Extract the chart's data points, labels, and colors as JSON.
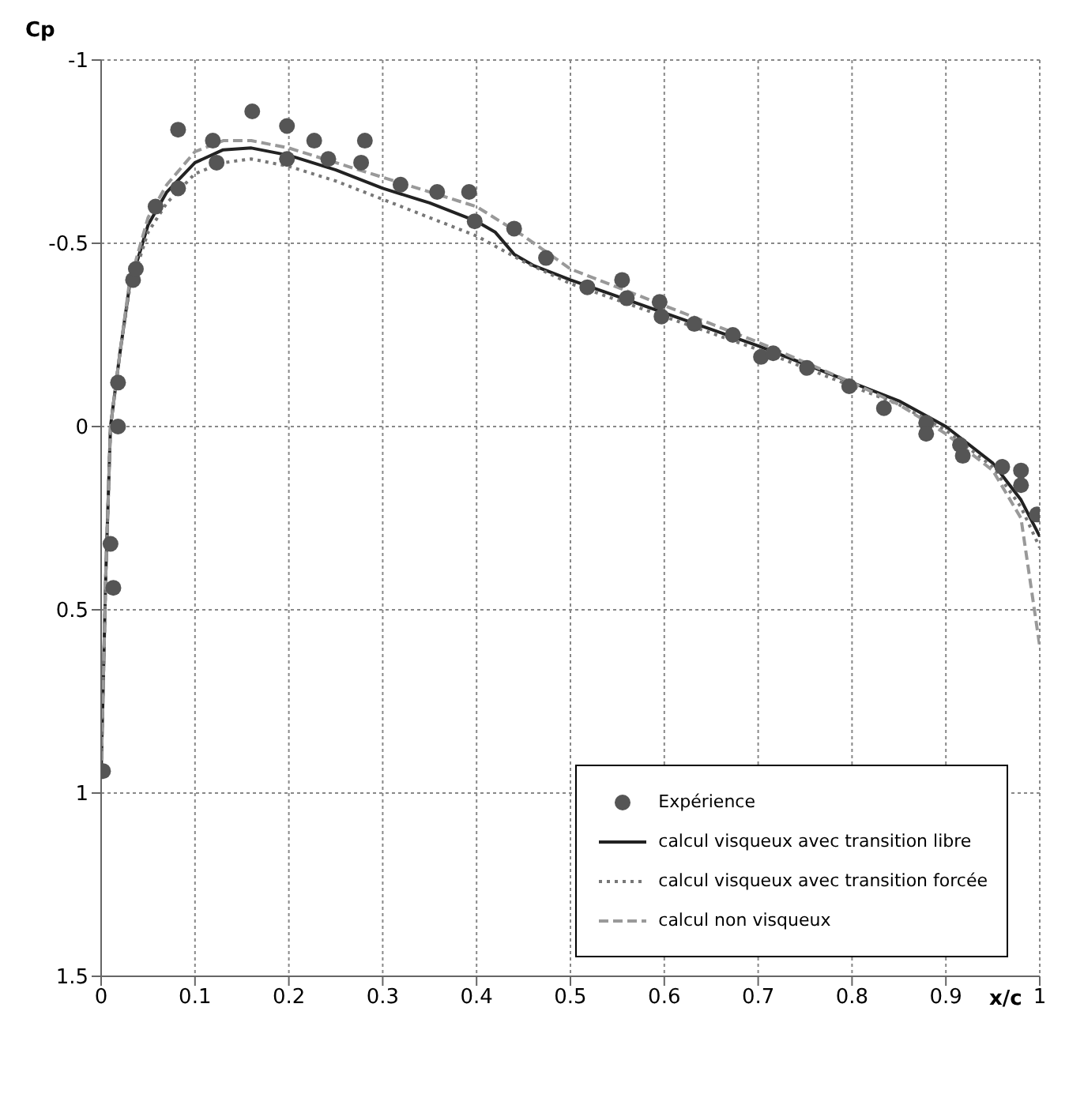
{
  "chart_data": {
    "type": "line",
    "xlabel": "x/c",
    "ylabel": "Cp",
    "xlim": [
      0,
      1
    ],
    "xticks": [
      0,
      0.1,
      0.2,
      0.3,
      0.4,
      0.5,
      0.6,
      0.7,
      0.8,
      0.9,
      1
    ],
    "ylim": [
      1.5,
      -1
    ],
    "yticks": [
      -1,
      -0.5,
      0,
      0.5,
      1,
      1.5
    ],
    "grid": true,
    "legend": "bottom right",
    "series": [
      {
        "name": "Expérience",
        "type": "scatter",
        "marker": "circle",
        "color": "#555555",
        "x": [
          0.002,
          0.013,
          0.01,
          0.018,
          0.018,
          0.034,
          0.037,
          0.058,
          0.082,
          0.082,
          0.119,
          0.123,
          0.161,
          0.198,
          0.198,
          0.227,
          0.242,
          0.281,
          0.277,
          0.319,
          0.358,
          0.392,
          0.398,
          0.44,
          0.474,
          0.518,
          0.555,
          0.56,
          0.595,
          0.597,
          0.632,
          0.673,
          0.703,
          0.716,
          0.752,
          0.797,
          0.834,
          0.879,
          0.879,
          0.915,
          0.918,
          0.96,
          0.98,
          0.98,
          0.997
        ],
        "values": [
          0.94,
          0.44,
          0.32,
          0.0,
          -0.12,
          -0.4,
          -0.43,
          -0.6,
          -0.65,
          -0.81,
          -0.78,
          -0.72,
          -0.86,
          -0.82,
          -0.73,
          -0.78,
          -0.73,
          -0.78,
          -0.72,
          -0.66,
          -0.64,
          -0.64,
          -0.56,
          -0.54,
          -0.46,
          -0.38,
          -0.4,
          -0.35,
          -0.34,
          -0.3,
          -0.28,
          -0.25,
          -0.19,
          -0.2,
          -0.16,
          -0.11,
          -0.05,
          -0.01,
          0.02,
          0.05,
          0.08,
          0.11,
          0.12,
          0.16,
          0.24
        ]
      },
      {
        "name": "calcul visqueux avec transition libre",
        "marker": "none",
        "line_style": "solid",
        "color": "#222222",
        "x": [
          0,
          0.005,
          0.01,
          0.02,
          0.03,
          0.05,
          0.07,
          0.1,
          0.13,
          0.16,
          0.2,
          0.25,
          0.3,
          0.35,
          0.4,
          0.42,
          0.44,
          0.46,
          0.5,
          0.6,
          0.7,
          0.8,
          0.85,
          0.9,
          0.95,
          0.98,
          1
        ],
        "values": [
          0.95,
          0.4,
          0.0,
          -0.2,
          -0.38,
          -0.55,
          -0.64,
          -0.72,
          -0.755,
          -0.76,
          -0.74,
          -0.7,
          -0.65,
          -0.61,
          -0.56,
          -0.53,
          -0.47,
          -0.44,
          -0.4,
          -0.31,
          -0.22,
          -0.12,
          -0.07,
          0.0,
          0.1,
          0.2,
          0.3
        ]
      },
      {
        "name": "calcul visqueux avec transition forcée",
        "marker": "none",
        "line_style": "dotted",
        "color": "#777777",
        "x": [
          0,
          0.005,
          0.01,
          0.02,
          0.03,
          0.05,
          0.07,
          0.1,
          0.13,
          0.16,
          0.2,
          0.25,
          0.3,
          0.35,
          0.4,
          0.45,
          0.5,
          0.6,
          0.7,
          0.8,
          0.85,
          0.9,
          0.95,
          0.98,
          1
        ],
        "values": [
          0.95,
          0.4,
          0.0,
          -0.2,
          -0.37,
          -0.53,
          -0.61,
          -0.69,
          -0.72,
          -0.73,
          -0.71,
          -0.67,
          -0.62,
          -0.57,
          -0.52,
          -0.45,
          -0.39,
          -0.3,
          -0.21,
          -0.11,
          -0.06,
          0.01,
          0.11,
          0.22,
          0.33
        ]
      },
      {
        "name": "calcul non visqueux",
        "marker": "none",
        "line_style": "dashed",
        "color": "#999999",
        "x": [
          0,
          0.005,
          0.01,
          0.02,
          0.03,
          0.05,
          0.07,
          0.1,
          0.13,
          0.16,
          0.2,
          0.25,
          0.3,
          0.35,
          0.4,
          0.45,
          0.5,
          0.6,
          0.7,
          0.8,
          0.85,
          0.9,
          0.95,
          0.98,
          1
        ],
        "values": [
          0.95,
          0.4,
          0.0,
          -0.2,
          -0.39,
          -0.57,
          -0.66,
          -0.75,
          -0.78,
          -0.78,
          -0.76,
          -0.72,
          -0.68,
          -0.64,
          -0.6,
          -0.52,
          -0.43,
          -0.33,
          -0.23,
          -0.12,
          -0.06,
          0.02,
          0.12,
          0.25,
          0.6
        ]
      }
    ]
  }
}
